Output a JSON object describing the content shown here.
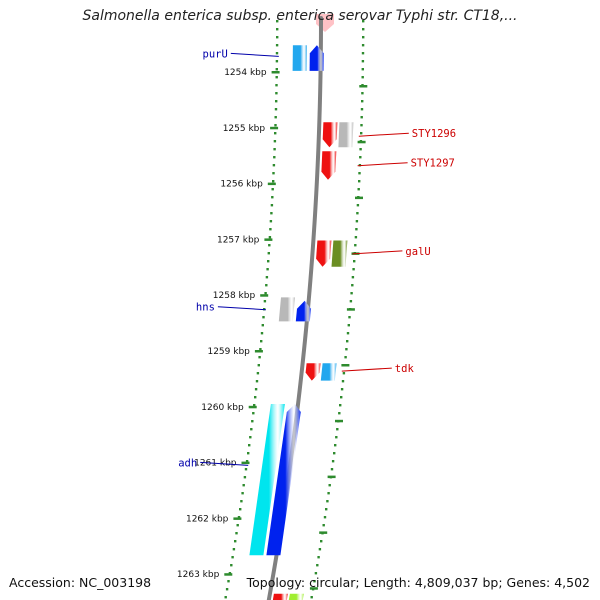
{
  "title": "Salmonella enterica subsp. enterica serovar Typhi str. CT18,...",
  "accession": "Accession: NC_003198",
  "summary": "Topology: circular; Length: 4,809,037 bp; Genes: 4,502",
  "ticks": [
    {
      "label": "1254 kbp",
      "kbp": 1254
    },
    {
      "label": "1255 kbp",
      "kbp": 1255
    },
    {
      "label": "1256 kbp",
      "kbp": 1256
    },
    {
      "label": "1257 kbp",
      "kbp": 1257
    },
    {
      "label": "1258 kbp",
      "kbp": 1258
    },
    {
      "label": "1259 kbp",
      "kbp": 1259
    },
    {
      "label": "1260 kbp",
      "kbp": 1260
    },
    {
      "label": "1261 kbp",
      "kbp": 1261
    },
    {
      "label": "1262 kbp",
      "kbp": 1262
    },
    {
      "label": "1263 kbp",
      "kbp": 1263
    }
  ],
  "colors": {
    "backbone": "#808080",
    "track_dots": "#2e8b2e",
    "reverse_label": "#0000aa",
    "forward_label": "#cc0000",
    "title": "#222222",
    "footer": "#111111",
    "tick_label": "#111111",
    "highlight": "#ffb3b8"
  },
  "features": [
    {
      "id": "purU_cds",
      "strand": "reverse",
      "kind": "cds",
      "start": 1253.52,
      "end": 1253.98,
      "color": "#22a7ee"
    },
    {
      "id": "purU_gene",
      "strand": "reverse",
      "kind": "gene",
      "start": 1253.52,
      "end": 1253.98,
      "color": "#0022ee"
    },
    {
      "id": "f1_gene",
      "strand": "forward",
      "kind": "gene",
      "start": 1254.9,
      "end": 1255.35,
      "color": "#ee1111"
    },
    {
      "id": "f1_other",
      "strand": "forward",
      "kind": "other",
      "start": 1254.9,
      "end": 1255.35,
      "color": "#b8b8b8"
    },
    {
      "id": "f2_gene",
      "strand": "forward",
      "kind": "gene",
      "start": 1255.42,
      "end": 1255.93,
      "color": "#ee1111"
    },
    {
      "id": "galU_gene",
      "strand": "forward",
      "kind": "gene",
      "start": 1257.02,
      "end": 1257.49,
      "color": "#ee1111"
    },
    {
      "id": "galU_tr",
      "strand": "forward",
      "kind": "other",
      "start": 1257.02,
      "end": 1257.49,
      "color": "#6b8e23"
    },
    {
      "id": "hns_other",
      "strand": "reverse",
      "kind": "other",
      "start": 1258.04,
      "end": 1258.47,
      "color": "#b8b8b8"
    },
    {
      "id": "hns_gene",
      "strand": "reverse",
      "kind": "gene",
      "start": 1258.1,
      "end": 1258.47,
      "color": "#0022ee"
    },
    {
      "id": "tdk_gene",
      "strand": "forward",
      "kind": "gene",
      "start": 1259.22,
      "end": 1259.53,
      "color": "#ee1111"
    },
    {
      "id": "tdk_cds",
      "strand": "forward",
      "kind": "cds",
      "start": 1259.22,
      "end": 1259.53,
      "color": "#22a7ee"
    },
    {
      "id": "adh_cds",
      "strand": "reverse",
      "kind": "cds",
      "start": 1259.95,
      "end": 1262.66,
      "color": "#00e5ee"
    },
    {
      "id": "adh_gene",
      "strand": "reverse",
      "kind": "gene",
      "start": 1259.95,
      "end": 1262.66,
      "color": "#0022ee"
    },
    {
      "id": "g3_gene",
      "strand": "forward",
      "kind": "gene",
      "start": 1263.35,
      "end": 1263.6,
      "color": "#ee1111"
    },
    {
      "id": "g3_other",
      "strand": "forward",
      "kind": "other",
      "start": 1263.35,
      "end": 1263.6,
      "color": "#a0ee30"
    }
  ],
  "labels": [
    {
      "id": "purU",
      "text": "purU",
      "side": "left",
      "kbp": 1253.72,
      "anchor_track": "reverse"
    },
    {
      "id": "STY1296",
      "text": "STY1296",
      "side": "right",
      "kbp": 1255.15,
      "anchor_track": "forward"
    },
    {
      "id": "STY1297",
      "text": "STY1297",
      "side": "right",
      "kbp": 1255.68,
      "anchor_track": "forward"
    },
    {
      "id": "galU",
      "text": "galU",
      "side": "right",
      "kbp": 1257.26,
      "anchor_track": "forward"
    },
    {
      "id": "hns",
      "text": "hns",
      "side": "left",
      "kbp": 1258.26,
      "anchor_track": "reverse"
    },
    {
      "id": "tdk",
      "text": "tdk",
      "side": "right",
      "kbp": 1259.36,
      "anchor_track": "forward"
    },
    {
      "id": "adh",
      "text": "adh",
      "side": "left",
      "kbp": 1261.05,
      "anchor_track": "reverse"
    }
  ]
}
